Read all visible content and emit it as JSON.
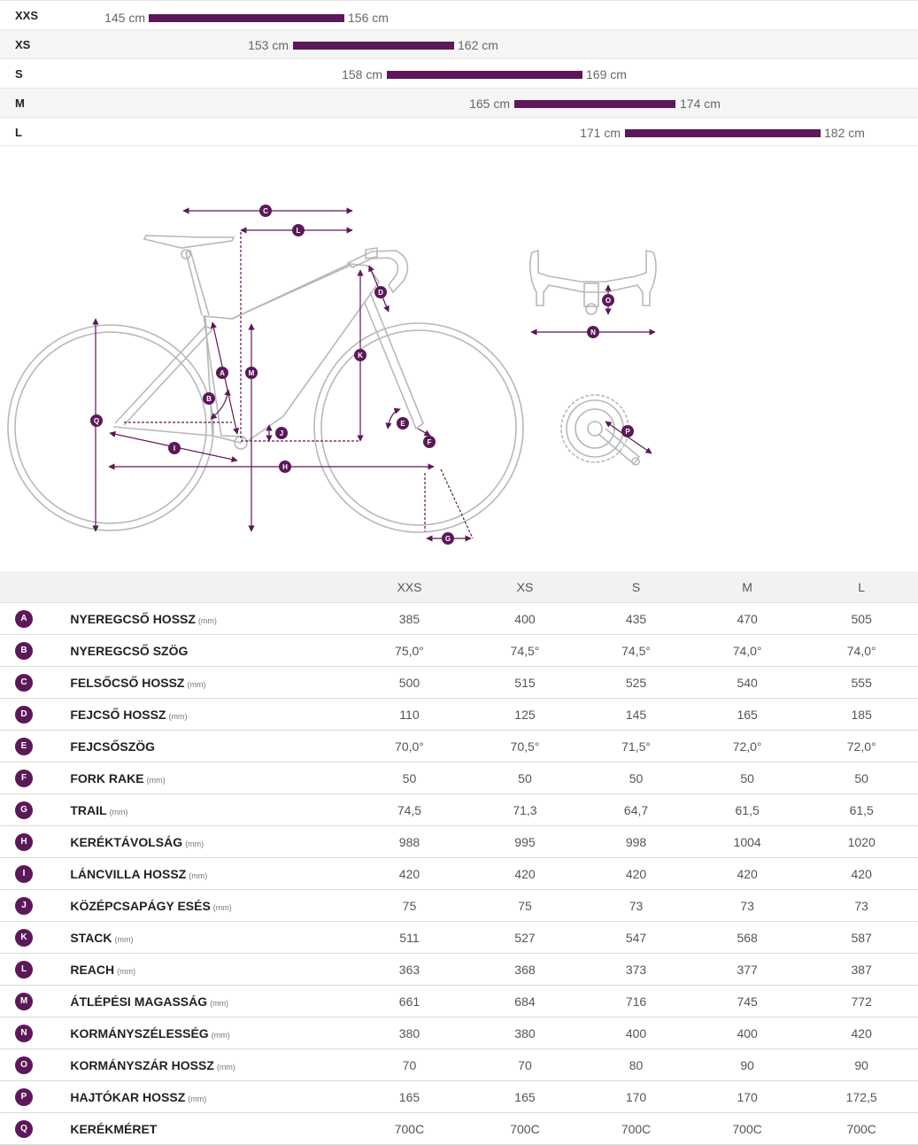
{
  "size_ranges": [
    {
      "size": "XXS",
      "min": "145 cm",
      "max": "156 cm"
    },
    {
      "size": "XS",
      "min": "153 cm",
      "max": "162 cm"
    },
    {
      "size": "S",
      "min": "158 cm",
      "max": "169 cm"
    },
    {
      "size": "M",
      "min": "165 cm",
      "max": "174 cm"
    },
    {
      "size": "L",
      "min": "171 cm",
      "max": "182 cm"
    }
  ],
  "diagram": {
    "markers": [
      "A",
      "B",
      "C",
      "D",
      "E",
      "F",
      "G",
      "H",
      "I",
      "J",
      "K",
      "L",
      "M",
      "N",
      "O",
      "P",
      "Q"
    ]
  },
  "accent_color": "#5c1858",
  "table": {
    "columns": [
      "XXS",
      "XS",
      "S",
      "M",
      "L"
    ],
    "rows": [
      {
        "mark": "A",
        "name": "NYEREGCSŐ HOSSZ",
        "unit": "(mm)",
        "values": [
          "385",
          "400",
          "435",
          "470",
          "505"
        ]
      },
      {
        "mark": "B",
        "name": "NYEREGCSŐ SZÖG",
        "unit": "",
        "values": [
          "75,0°",
          "74,5°",
          "74,5°",
          "74,0°",
          "74,0°"
        ]
      },
      {
        "mark": "C",
        "name": "FELSŐCSŐ HOSSZ",
        "unit": "(mm)",
        "values": [
          "500",
          "515",
          "525",
          "540",
          "555"
        ]
      },
      {
        "mark": "D",
        "name": "FEJCSŐ HOSSZ",
        "unit": "(mm)",
        "values": [
          "110",
          "125",
          "145",
          "165",
          "185"
        ]
      },
      {
        "mark": "E",
        "name": "FEJCSŐSZÖG",
        "unit": "",
        "values": [
          "70,0°",
          "70,5°",
          "71,5°",
          "72,0°",
          "72,0°"
        ]
      },
      {
        "mark": "F",
        "name": "FORK RAKE",
        "unit": "(mm)",
        "values": [
          "50",
          "50",
          "50",
          "50",
          "50"
        ]
      },
      {
        "mark": "G",
        "name": "TRAIL",
        "unit": "(mm)",
        "values": [
          "74,5",
          "71,3",
          "64,7",
          "61,5",
          "61,5"
        ]
      },
      {
        "mark": "H",
        "name": "KERÉKTÁVOLSÁG",
        "unit": "(mm)",
        "values": [
          "988",
          "995",
          "998",
          "1004",
          "1020"
        ]
      },
      {
        "mark": "I",
        "name": "LÁNCVILLA HOSSZ",
        "unit": "(mm)",
        "values": [
          "420",
          "420",
          "420",
          "420",
          "420"
        ]
      },
      {
        "mark": "J",
        "name": "KÖZÉPCSAPÁGY ESÉS",
        "unit": "(mm)",
        "values": [
          "75",
          "75",
          "73",
          "73",
          "73"
        ]
      },
      {
        "mark": "K",
        "name": "STACK",
        "unit": "(mm)",
        "values": [
          "511",
          "527",
          "547",
          "568",
          "587"
        ]
      },
      {
        "mark": "L",
        "name": "REACH",
        "unit": "(mm)",
        "values": [
          "363",
          "368",
          "373",
          "377",
          "387"
        ]
      },
      {
        "mark": "M",
        "name": "ÁTLÉPÉSI MAGASSÁG",
        "unit": "(mm)",
        "values": [
          "661",
          "684",
          "716",
          "745",
          "772"
        ]
      },
      {
        "mark": "N",
        "name": "KORMÁNYSZÉLESSÉG",
        "unit": "(mm)",
        "values": [
          "380",
          "380",
          "400",
          "400",
          "420"
        ]
      },
      {
        "mark": "O",
        "name": "KORMÁNYSZÁR HOSSZ",
        "unit": "(mm)",
        "values": [
          "70",
          "70",
          "80",
          "90",
          "90"
        ]
      },
      {
        "mark": "P",
        "name": "HAJTÓKAR HOSSZ",
        "unit": "(mm)",
        "values": [
          "165",
          "165",
          "170",
          "170",
          "172,5"
        ]
      },
      {
        "mark": "Q",
        "name": "KERÉKMÉRET",
        "unit": "",
        "values": [
          "700C",
          "700C",
          "700C",
          "700C",
          "700C"
        ]
      }
    ]
  }
}
